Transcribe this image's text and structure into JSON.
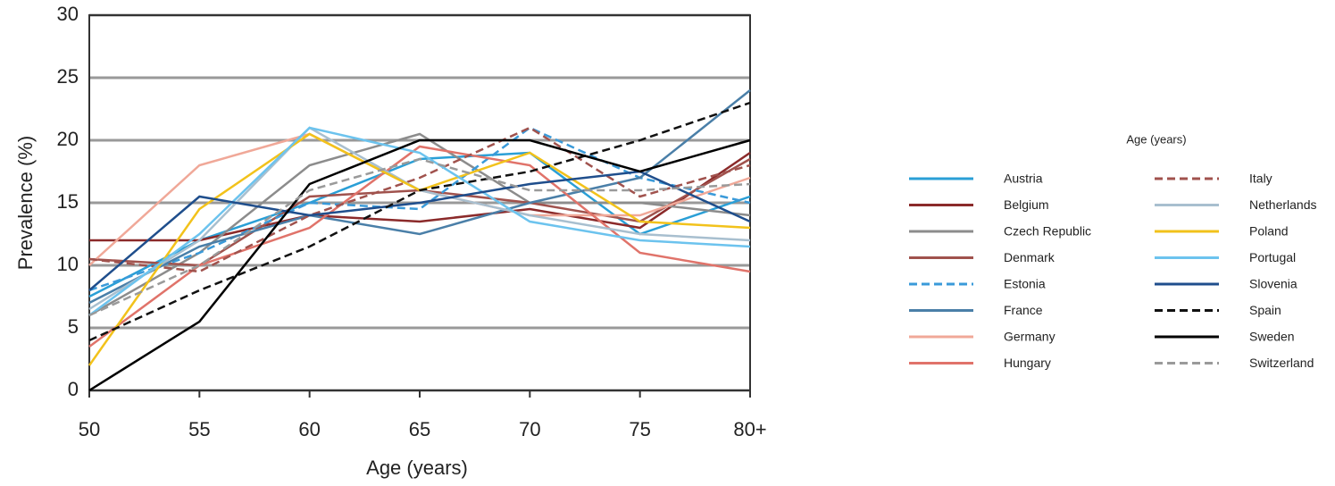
{
  "chart_data": {
    "type": "line",
    "xlabel": "Age (years)",
    "ylabel": "Prevalence (%)",
    "legend_title": "Age (years)",
    "categories": [
      "50",
      "55",
      "60",
      "65",
      "70",
      "75",
      "80+"
    ],
    "ylim": [
      0,
      30
    ],
    "yticks": [
      0,
      5,
      10,
      15,
      20,
      25,
      30
    ],
    "grid": true,
    "legend": "right",
    "series": [
      {
        "name": "Austria",
        "color": "#2a9fd6",
        "dash": false,
        "values": [
          7.5,
          12,
          15,
          18.5,
          19,
          12.5,
          15.5
        ]
      },
      {
        "name": "Belgium",
        "color": "#8b2a2a",
        "dash": false,
        "values": [
          12,
          12,
          14,
          13.5,
          14.5,
          13,
          19
        ]
      },
      {
        "name": "Czech Republic",
        "color": "#8c8c8c",
        "dash": false,
        "values": [
          6,
          11,
          18,
          20.5,
          15,
          15,
          14
        ]
      },
      {
        "name": "Denmark",
        "color": "#a0524d",
        "dash": false,
        "values": [
          10.5,
          10,
          15.5,
          16,
          15,
          13.5,
          18.5
        ]
      },
      {
        "name": "Estonia",
        "color": "#3a9ad9",
        "dash": true,
        "values": [
          8,
          11,
          15,
          14.5,
          21,
          17,
          15
        ]
      },
      {
        "name": "France",
        "color": "#4a7fa8",
        "dash": false,
        "values": [
          7,
          11.5,
          14,
          12.5,
          15,
          17,
          24
        ]
      },
      {
        "name": "Germany",
        "color": "#f0a898",
        "dash": false,
        "values": [
          10,
          18,
          20.5,
          16,
          14,
          14,
          17
        ]
      },
      {
        "name": "Hungary",
        "color": "#e0736a",
        "dash": false,
        "values": [
          3.5,
          10,
          13,
          19.5,
          18,
          11,
          9.5
        ]
      },
      {
        "name": "Italy",
        "color": "#a0524d",
        "dash": true,
        "values": [
          10.5,
          9.5,
          14,
          17,
          21,
          15.5,
          18
        ]
      },
      {
        "name": "Netherlands",
        "color": "#a8bfcf",
        "dash": false,
        "values": [
          6.5,
          12,
          21,
          16,
          14,
          12.5,
          12
        ]
      },
      {
        "name": "Poland",
        "color": "#f2c21b",
        "dash": false,
        "values": [
          2,
          14.5,
          20.5,
          16,
          19,
          13.5,
          13
        ]
      },
      {
        "name": "Portugal",
        "color": "#6cc3ee",
        "dash": false,
        "values": [
          6,
          12.5,
          21,
          19,
          13.5,
          12,
          11.5
        ]
      },
      {
        "name": "Slovenia",
        "color": "#1f4e8c",
        "dash": false,
        "values": [
          8,
          15.5,
          14,
          15,
          16.5,
          17.5,
          13.5
        ]
      },
      {
        "name": "Spain",
        "color": "#111111",
        "dash": true,
        "values": [
          4,
          8,
          11.5,
          16,
          17.5,
          20,
          23
        ]
      },
      {
        "name": "Sweden",
        "color": "#000000",
        "dash": false,
        "values": [
          0,
          5.5,
          16.5,
          20,
          20,
          17.5,
          20
        ]
      },
      {
        "name": "Switzerland",
        "color": "#9a9a9a",
        "dash": true,
        "values": [
          6,
          10,
          16,
          18.5,
          16,
          16,
          16.5
        ]
      }
    ]
  }
}
